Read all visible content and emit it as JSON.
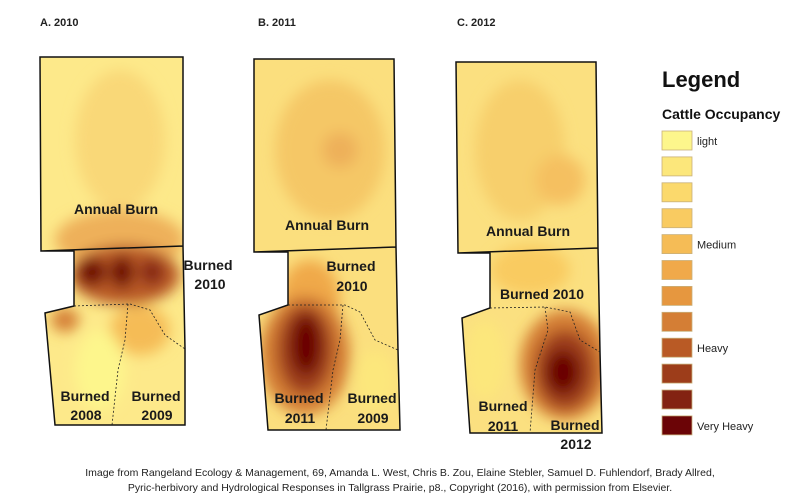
{
  "panels": [
    {
      "title": "A. 2010",
      "labels": {
        "annual": "Annual Burn",
        "b2010_1": "Burned",
        "b2010_2": "2010",
        "sw_1": "Burned",
        "sw_2": "2008",
        "se_1": "Burned",
        "se_2": "2009"
      }
    },
    {
      "title": "B. 2011",
      "labels": {
        "annual": "Annual Burn",
        "b2010_1": "Burned",
        "b2010_2": "2010",
        "sw_1": "Burned",
        "sw_2": "2011",
        "se_1": "Burned",
        "se_2": "2009"
      }
    },
    {
      "title": "C. 2012",
      "labels": {
        "annual": "Annual Burn",
        "b2010": "Burned 2010",
        "sw_1": "Burned",
        "sw_2": "2011",
        "se_1": "Burned",
        "se_2": "2012"
      }
    }
  ],
  "legend": {
    "title": "Legend",
    "subtitle": "Cattle Occupancy",
    "classes": [
      {
        "label": "light",
        "color": "#fdf68c"
      },
      {
        "label": "",
        "color": "#fce77b"
      },
      {
        "label": "",
        "color": "#fbd96c"
      },
      {
        "label": "",
        "color": "#f9cb61"
      },
      {
        "label": "Medium",
        "color": "#f5bc56"
      },
      {
        "label": "",
        "color": "#f0a94a"
      },
      {
        "label": "",
        "color": "#e6973f"
      },
      {
        "label": "",
        "color": "#d47e35"
      },
      {
        "label": "Heavy",
        "color": "#b95a25"
      },
      {
        "label": "",
        "color": "#9d3d1a"
      },
      {
        "label": "",
        "color": "#832312"
      },
      {
        "label": "Very Heavy",
        "color": "#6b0406"
      }
    ]
  },
  "caption": {
    "line1": "Image from Rangeland Ecology & Management, 69, Amanda L. West, Chris B. Zou, Elaine Stebler, Samuel D. Fuhlendorf, Brady Allred,",
    "line2": "Pyric-herbivory and Hydrological Responses in Tallgrass Prairie, p8., Copyright (2016), with permission from Elsevier."
  }
}
